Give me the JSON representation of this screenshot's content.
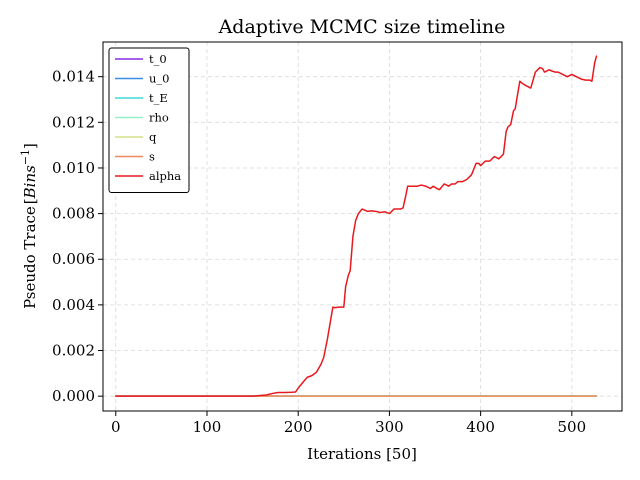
{
  "chart_data": {
    "type": "line",
    "title": "Adaptive MCMC size timeline",
    "xlabel": "Iterations [50]",
    "ylabel": "Pseudo Trace",
    "ylabel_unit_base": "Bins",
    "ylabel_unit_exp": "−1",
    "xlim": [
      -14,
      555
    ],
    "ylim": [
      -0.00065,
      0.01552
    ],
    "xticks": [
      0,
      100,
      200,
      300,
      400,
      500
    ],
    "yticks": [
      0.0,
      0.002,
      0.004,
      0.006,
      0.008,
      0.01,
      0.012,
      0.014
    ],
    "ytick_labels": [
      "0.000",
      "0.002",
      "0.004",
      "0.006",
      "0.008",
      "0.010",
      "0.012",
      "0.014"
    ],
    "grid": true,
    "legend_position": "top-left",
    "series": [
      {
        "name": "t_0",
        "color": "#8a2be2",
        "x": [
          0,
          527
        ],
        "y": [
          0,
          0
        ]
      },
      {
        "name": "u_0",
        "color": "#3a8ee6",
        "x": [
          0,
          527
        ],
        "y": [
          0,
          0
        ]
      },
      {
        "name": "t_E",
        "color": "#40d8d8",
        "x": [
          0,
          527
        ],
        "y": [
          0,
          0
        ]
      },
      {
        "name": "rho",
        "color": "#98f0c8",
        "x": [
          0,
          527
        ],
        "y": [
          0,
          0
        ]
      },
      {
        "name": "q",
        "color": "#d4e08a",
        "x": [
          0,
          527
        ],
        "y": [
          0,
          0
        ]
      },
      {
        "name": "s",
        "color": "#f08a5c",
        "x": [
          0,
          527
        ],
        "y": [
          0,
          0
        ]
      },
      {
        "name": "alpha",
        "color": "#e8191e",
        "x": [
          0,
          150,
          165,
          172,
          178,
          185,
          193,
          197,
          200,
          205,
          210,
          215,
          220,
          225,
          228,
          232,
          235,
          238,
          240,
          245,
          250,
          252,
          255,
          257,
          260,
          263,
          266,
          270,
          273,
          276,
          280,
          285,
          290,
          295,
          300,
          305,
          310,
          312,
          315,
          318,
          320,
          325,
          330,
          335,
          340,
          345,
          348,
          352,
          355,
          360,
          365,
          368,
          372,
          375,
          380,
          385,
          390,
          395,
          398,
          400,
          405,
          410,
          415,
          420,
          425,
          428,
          430,
          433,
          436,
          438,
          440,
          443,
          446,
          450,
          455,
          460,
          465,
          468,
          470,
          475,
          478,
          482,
          485,
          490,
          495,
          500,
          505,
          510,
          515,
          520,
          522,
          525,
          527
        ],
        "y": [
          0.0,
          0.0,
          5e-05,
          0.00012,
          0.00016,
          0.00016,
          0.00017,
          0.00018,
          0.00035,
          0.0006,
          0.00083,
          0.0009,
          0.00105,
          0.0014,
          0.0017,
          0.0025,
          0.0032,
          0.0039,
          0.00388,
          0.0039,
          0.0039,
          0.0048,
          0.0053,
          0.0055,
          0.007,
          0.0077,
          0.008,
          0.0082,
          0.00815,
          0.0081,
          0.00812,
          0.0081,
          0.00805,
          0.00808,
          0.008,
          0.0082,
          0.0082,
          0.0082,
          0.00825,
          0.0088,
          0.0092,
          0.0092,
          0.0092,
          0.00925,
          0.0092,
          0.0091,
          0.0092,
          0.0091,
          0.00905,
          0.0093,
          0.0092,
          0.0093,
          0.0093,
          0.0094,
          0.0094,
          0.0095,
          0.0097,
          0.0102,
          0.0102,
          0.0101,
          0.0103,
          0.0103,
          0.0105,
          0.0104,
          0.0106,
          0.0116,
          0.0118,
          0.0119,
          0.0125,
          0.0126,
          0.0131,
          0.0138,
          0.0137,
          0.0136,
          0.0135,
          0.0142,
          0.0144,
          0.01435,
          0.0142,
          0.0143,
          0.01425,
          0.0142,
          0.0142,
          0.0141,
          0.014,
          0.0141,
          0.014,
          0.0139,
          0.01385,
          0.01385,
          0.0138,
          0.0146,
          0.0149
        ]
      }
    ]
  }
}
